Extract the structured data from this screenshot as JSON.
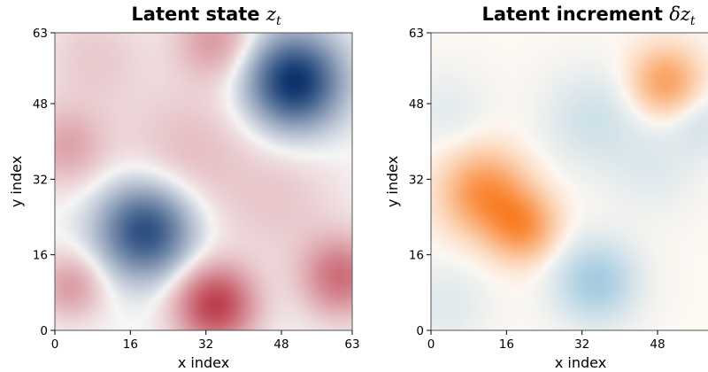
{
  "chart_data": [
    {
      "type": "heatmap",
      "title": "Latent state ",
      "title_symbol": "z",
      "title_subscript": "t",
      "xlabel": "x index",
      "ylabel": "y index",
      "xlim": [
        0,
        63
      ],
      "ylim": [
        0,
        63
      ],
      "xticks": [
        "0",
        "16",
        "32",
        "48",
        "63"
      ],
      "yticks": [
        "0",
        "16",
        "32",
        "48",
        "63"
      ],
      "colormap": "RdBu_r",
      "colors": {
        "positive": "#b2182b",
        "neutral": "#f7f7f7",
        "negative": "#08306b"
      },
      "blobs": [
        {
          "x": 51,
          "y": 53,
          "value": -1.0,
          "spread": 7
        },
        {
          "x": 19,
          "y": 21,
          "value": -0.85,
          "spread": 7
        },
        {
          "x": 34,
          "y": 5,
          "value": 0.8,
          "spread": 6
        },
        {
          "x": 61,
          "y": 11,
          "value": 0.55,
          "spread": 6
        },
        {
          "x": 34,
          "y": 62,
          "value": 0.35,
          "spread": 6
        },
        {
          "x": 2,
          "y": 39,
          "value": 0.3,
          "spread": 6
        },
        {
          "x": 28,
          "y": 38,
          "value": 0.2,
          "spread": 10
        },
        {
          "x": 3,
          "y": 9,
          "value": 0.35,
          "spread": 5
        },
        {
          "x": 8,
          "y": 58,
          "value": 0.15,
          "spread": 8
        },
        {
          "x": 48,
          "y": 27,
          "value": 0.15,
          "spread": 9
        }
      ]
    },
    {
      "type": "heatmap",
      "title": "Latent increment ",
      "title_symbol": "δz",
      "title_subscript": "t",
      "xlabel": "x index",
      "ylabel": "y index",
      "xlim": [
        0,
        63
      ],
      "ylim": [
        0,
        63
      ],
      "xticks": [
        "0",
        "16",
        "32",
        "48"
      ],
      "yticks": [
        "0",
        "16",
        "32",
        "48",
        "63"
      ],
      "colormap": "Blue-White-Orange",
      "colors": {
        "positive": "#f97a1f",
        "neutral": "#fdf8f2",
        "negative": "#6aaed6"
      },
      "blobs": [
        {
          "x": 11,
          "y": 29,
          "value": 0.8,
          "spread": 6
        },
        {
          "x": 19,
          "y": 22,
          "value": 0.75,
          "spread": 5
        },
        {
          "x": 50,
          "y": 53,
          "value": 0.65,
          "spread": 5
        },
        {
          "x": 35,
          "y": 10,
          "value": -0.55,
          "spread": 6
        },
        {
          "x": 34,
          "y": 45,
          "value": -0.25,
          "spread": 7
        },
        {
          "x": 47,
          "y": 35,
          "value": -0.15,
          "spread": 7
        },
        {
          "x": 58,
          "y": 44,
          "value": -0.2,
          "spread": 5
        },
        {
          "x": 3,
          "y": 5,
          "value": -0.15,
          "spread": 6
        },
        {
          "x": 3,
          "y": 47,
          "value": -0.12,
          "spread": 6
        }
      ]
    }
  ]
}
